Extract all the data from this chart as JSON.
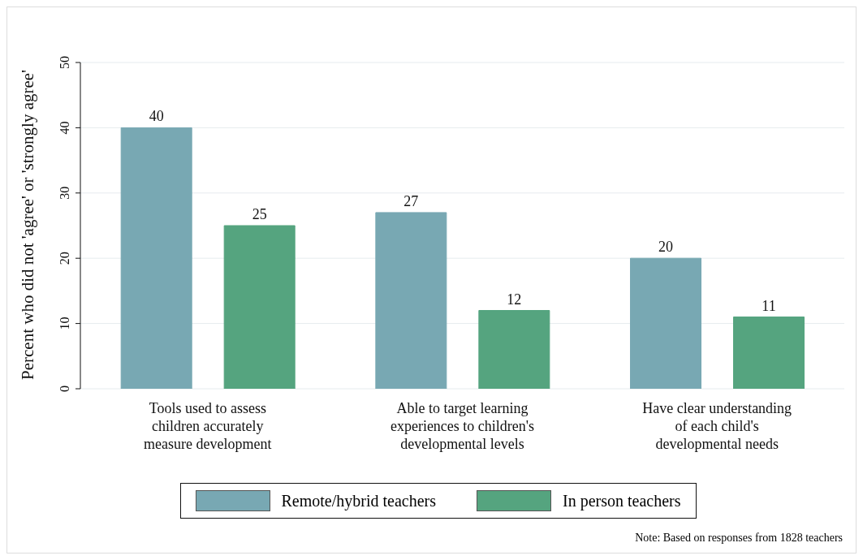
{
  "chart_data": {
    "type": "bar",
    "ylabel": "Percent who did not 'agree' or 'strongly agree'",
    "categories": [
      "Tools used to assess children accurately measure development",
      "Able to target learning experiences to children's developmental levels",
      "Have clear understanding of each child's developmental needs"
    ],
    "series": [
      {
        "name": "Remote/hybrid teachers",
        "color": "#78a8b3",
        "values": [
          40,
          27,
          20
        ]
      },
      {
        "name": "In person teachers",
        "color": "#55a47f",
        "values": [
          25,
          12,
          11
        ]
      }
    ],
    "ylim": [
      0,
      50
    ],
    "yticks": [
      0,
      10,
      20,
      30,
      40,
      50
    ],
    "grid": "y",
    "legend": "bottom",
    "data_labels": true,
    "annotations": [
      "Note: Based on responses from 1828 teachers"
    ]
  }
}
